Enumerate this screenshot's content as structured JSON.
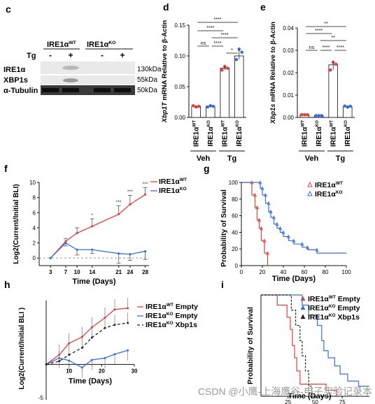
{
  "panel_c": {
    "letter": "c",
    "groups": [
      {
        "base": "IRE1α",
        "sup": "WT"
      },
      {
        "base": "IRE1α",
        "sup": "KO"
      }
    ],
    "tg_label": "Tg",
    "lanes": [
      "-",
      "+",
      "-",
      "+"
    ],
    "rows": [
      "IRE1α",
      "XBP1s",
      "α-Tubulin"
    ],
    "sizes": [
      "130kDa",
      "55kDa",
      "50kDa"
    ]
  },
  "chart_data": [
    {
      "panel": "d",
      "type": "bar",
      "ylabel": "Xbp1T mRNA Relative to β-Actin",
      "ylabel_italic": "Xbp1T",
      "ylabel_rest": " mRNA Relative to β-Actin",
      "ylim": [
        0,
        0.15
      ],
      "yticks": [
        "0.00",
        "0.05",
        "0.10",
        "0.15"
      ],
      "categories": [
        {
          "base": "IRE1α",
          "sup": "WT"
        },
        {
          "base": "IRE1α",
          "sup": "KO"
        },
        {
          "base": "IRE1α",
          "sup": "WT"
        },
        {
          "base": "IRE1α",
          "sup": "KO"
        }
      ],
      "values": [
        0.018,
        0.018,
        0.08,
        0.1
      ],
      "points": [
        [
          0.019,
          0.017,
          0.018
        ],
        [
          0.017,
          0.019,
          0.018
        ],
        [
          0.077,
          0.083,
          0.08
        ],
        [
          0.094,
          0.111,
          0.106
        ]
      ],
      "colors": [
        "#e0413c",
        "#3a6fd8",
        "#e0413c",
        "#3a6fd8"
      ],
      "groups": [
        "Veh",
        "Tg"
      ],
      "significance": [
        "****",
        "****",
        "****",
        "ns",
        "****",
        "*"
      ]
    },
    {
      "panel": "e",
      "type": "bar",
      "ylabel": "Xbp1s mRNA Relative to β-Actin",
      "ylabel_italic": "Xbp1s",
      "ylabel_rest": " mRNA Relative to β-Actin",
      "ylim": [
        0,
        0.04
      ],
      "yticks": [
        "0.00",
        "0.01",
        "0.02",
        "0.03",
        "0.04"
      ],
      "categories": [
        {
          "base": "IRE1α",
          "sup": "WT"
        },
        {
          "base": "IRE1α",
          "sup": "KO"
        },
        {
          "base": "IRE1α",
          "sup": "WT"
        },
        {
          "base": "IRE1α",
          "sup": "KO"
        }
      ],
      "values": [
        0.0012,
        0.0008,
        0.0235,
        0.0048
      ],
      "points": [
        [
          0.0012,
          0.0012,
          0.0012
        ],
        [
          0.0008,
          0.0008,
          0.0008
        ],
        [
          0.0212,
          0.0247,
          0.0238
        ],
        [
          0.0051,
          0.0046,
          0.005
        ]
      ],
      "colors": [
        "#e0413c",
        "#3a6fd8",
        "#e0413c",
        "#3a6fd8"
      ],
      "groups": [
        "Veh",
        "Tg"
      ],
      "significance": [
        "**",
        "****",
        "**",
        "ns",
        "****",
        "****"
      ]
    },
    {
      "panel": "f",
      "type": "line",
      "xlabel": "Time (Days)",
      "ylabel": "Log2(Current/Initial BLI)",
      "xlim": [
        0,
        29
      ],
      "ylim": [
        -1,
        10
      ],
      "x": [
        3,
        7,
        10,
        14,
        21,
        24,
        28
      ],
      "xticks": [
        "3",
        "7",
        "10",
        "14",
        "21",
        "24",
        "28"
      ],
      "yticks": [
        "0",
        "2",
        "4",
        "6",
        "8",
        "10"
      ],
      "series": [
        {
          "name": "IRE1αWT",
          "base": "IRE1α",
          "sup": "WT",
          "color": "#e0413c",
          "values": [
            0,
            2.2,
            3.3,
            4.2,
            5.8,
            7.1,
            8.4
          ],
          "err": [
            0,
            0.4,
            0.7,
            1.0,
            1.1,
            1.2,
            0.9
          ]
        },
        {
          "name": "IRE1αKO",
          "base": "IRE1α",
          "sup": "KO",
          "color": "#3a6fd8",
          "values": [
            0,
            2.0,
            1.1,
            1.1,
            0.6,
            0.5,
            0.9
          ],
          "err": [
            0,
            0.4,
            0.7,
            0.5,
            1.3,
            0.8,
            1.1
          ]
        }
      ],
      "annotations": [
        {
          "x": 14,
          "text": "*"
        },
        {
          "x": 21,
          "text": "***"
        },
        {
          "x": 24,
          "text": "***"
        },
        {
          "x": 28,
          "text": "***"
        }
      ]
    },
    {
      "panel": "g",
      "type": "line",
      "xlabel": "Time (Days)",
      "ylabel": "Probability of Survival",
      "xlim": [
        0,
        100
      ],
      "ylim": [
        0,
        100
      ],
      "xticks": [
        "0",
        "20",
        "40",
        "60",
        "80",
        "100"
      ],
      "yticks": [
        "0",
        "20",
        "40",
        "60",
        "80",
        "100"
      ],
      "series": [
        {
          "name": "IRE1αWT",
          "base": "IRE1α",
          "sup": "WT",
          "color": "#e0413c",
          "steps": [
            [
              0,
              100
            ],
            [
              10,
              100
            ],
            [
              10,
              85
            ],
            [
              13,
              85
            ],
            [
              13,
              70
            ],
            [
              15,
              70
            ],
            [
              15,
              55
            ],
            [
              17,
              55
            ],
            [
              17,
              45
            ],
            [
              19,
              45
            ],
            [
              19,
              30
            ],
            [
              22,
              30
            ],
            [
              22,
              15
            ],
            [
              25,
              15
            ],
            [
              25,
              0
            ]
          ]
        },
        {
          "name": "IRE1αKO",
          "base": "IRE1α",
          "sup": "KO",
          "color": "#3a6fd8",
          "steps": [
            [
              0,
              100
            ],
            [
              18,
              100
            ],
            [
              18,
              93
            ],
            [
              20,
              93
            ],
            [
              20,
              85
            ],
            [
              23,
              85
            ],
            [
              23,
              75
            ],
            [
              26,
              75
            ],
            [
              26,
              65
            ],
            [
              28,
              65
            ],
            [
              28,
              58
            ],
            [
              31,
              58
            ],
            [
              31,
              50
            ],
            [
              34,
              50
            ],
            [
              34,
              45
            ],
            [
              37,
              45
            ],
            [
              37,
              40
            ],
            [
              40,
              40
            ],
            [
              40,
              35
            ],
            [
              45,
              35
            ],
            [
              45,
              30
            ],
            [
              50,
              30
            ],
            [
              50,
              26
            ],
            [
              58,
              26
            ],
            [
              58,
              22
            ],
            [
              63,
              22
            ],
            [
              63,
              19
            ],
            [
              72,
              19
            ],
            [
              72,
              15
            ],
            [
              100,
              15
            ]
          ]
        }
      ]
    },
    {
      "panel": "h",
      "type": "line",
      "xlabel": "Time (Days)",
      "ylabel": "Log2(Current/Initial BLI )",
      "xlim": [
        3,
        30
      ],
      "ylim": [
        -5,
        10
      ],
      "xticks": [
        "10",
        "20",
        "30"
      ],
      "yticks": [
        "-5"
      ],
      "series": [
        {
          "name": "IRE1αWT Empty",
          "base": "IRE1α",
          "sup": "WT",
          "tail": " Empty",
          "color": "#e0413c",
          "dash": "",
          "x": [
            3,
            7,
            10,
            14,
            17,
            21,
            24,
            28
          ],
          "values": [
            0,
            1.5,
            3.3,
            4.3,
            5.8,
            7.3,
            8.6,
            8.8
          ]
        },
        {
          "name": "IRE1αKO Empty",
          "base": "IRE1α",
          "sup": "KO",
          "tail": " Empty",
          "color": "#3a6fd8",
          "dash": "",
          "x": [
            3,
            7,
            10,
            14,
            17,
            21,
            24,
            28
          ],
          "values": [
            0,
            1.0,
            0.6,
            -0.5,
            0.7,
            1.0,
            1.6,
            2.2
          ]
        },
        {
          "name": "IRE1αKO Xbp1s",
          "base": "IRE1α",
          "sup": "KO",
          "tail": " Xbp1s",
          "color": "#222222",
          "dash": "4,3",
          "x": [
            3,
            7,
            10,
            14,
            17,
            21,
            24,
            28
          ],
          "values": [
            0,
            0.5,
            1.5,
            2.6,
            4.2,
            5.7,
            6.2,
            6.5
          ]
        }
      ]
    },
    {
      "panel": "i",
      "type": "line",
      "xlabel": "Time (Days)",
      "ylabel": "Probability of Survival",
      "xlim": [
        0,
        100
      ],
      "ylim": [
        0,
        100
      ],
      "xticks": [
        "25",
        "50",
        "75"
      ],
      "yticks": [],
      "series": [
        {
          "name": "IRE1αWT Empty",
          "base": "IRE1α",
          "sup": "WT",
          "tail": " Empty",
          "color": "#e0413c",
          "dash": "",
          "steps": [
            [
              0,
              100
            ],
            [
              15,
              100
            ],
            [
              15,
              90
            ],
            [
              24,
              90
            ],
            [
              24,
              78
            ],
            [
              27,
              78
            ],
            [
              27,
              66
            ],
            [
              29,
              66
            ],
            [
              29,
              50
            ],
            [
              31,
              50
            ],
            [
              31,
              38
            ],
            [
              33,
              38
            ],
            [
              33,
              25
            ],
            [
              36,
              25
            ],
            [
              36,
              12
            ],
            [
              60,
              12
            ],
            [
              60,
              6
            ],
            [
              70,
              6
            ],
            [
              70,
              0
            ]
          ]
        },
        {
          "name": "IRE1αKO Empty",
          "base": "IRE1α",
          "sup": "KO",
          "tail": " Empty",
          "color": "#3a6fd8",
          "dash": "",
          "steps": [
            [
              0,
              100
            ],
            [
              38,
              100
            ],
            [
              38,
              90
            ],
            [
              44,
              90
            ],
            [
              44,
              80
            ],
            [
              52,
              80
            ],
            [
              52,
              70
            ],
            [
              56,
              70
            ],
            [
              56,
              55
            ],
            [
              58,
              55
            ],
            [
              58,
              45
            ],
            [
              62,
              45
            ],
            [
              62,
              38
            ],
            [
              68,
              38
            ],
            [
              68,
              30
            ],
            [
              73,
              30
            ],
            [
              73,
              22
            ],
            [
              80,
              22
            ],
            [
              80,
              15
            ],
            [
              90,
              15
            ],
            [
              90,
              10
            ],
            [
              100,
              10
            ]
          ]
        },
        {
          "name": "IRE1αKO Xbp1s",
          "base": "IRE1α",
          "sup": "KO",
          "tail": " Xbp1s",
          "color": "#222222",
          "dash": "3,2",
          "steps": [
            [
              0,
              100
            ],
            [
              28,
              100
            ],
            [
              28,
              85
            ],
            [
              32,
              85
            ],
            [
              32,
              70
            ],
            [
              36,
              70
            ],
            [
              36,
              55
            ],
            [
              38,
              55
            ],
            [
              38,
              40
            ],
            [
              41,
              40
            ],
            [
              41,
              25
            ],
            [
              44,
              25
            ],
            [
              44,
              10
            ],
            [
              47,
              10
            ],
            [
              47,
              0
            ]
          ]
        }
      ]
    }
  ],
  "watermark": "CSDN @小鹰-上海鹰谷-电子实验记录本"
}
